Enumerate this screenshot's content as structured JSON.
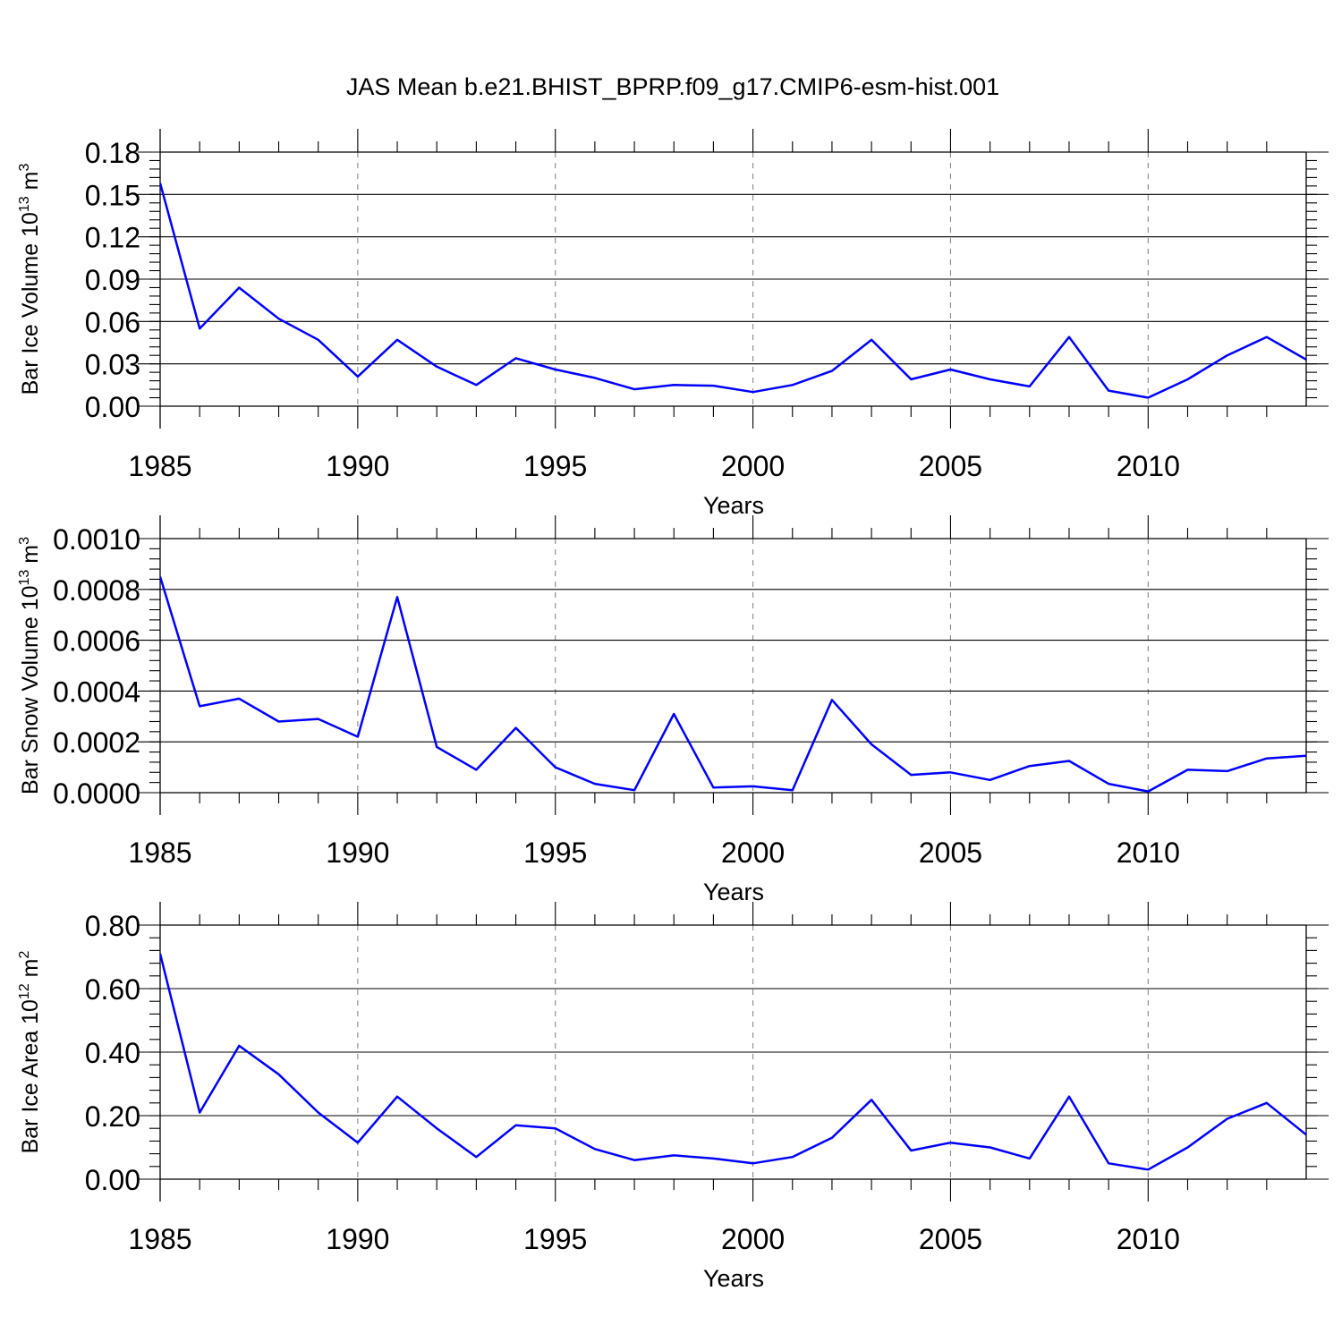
{
  "figure": {
    "title": "JAS Mean b.e21.BHIST_BPRP.f09_g17.CMIP6-esm-hist.001",
    "line_color": "#0000ff"
  },
  "chart_data": [
    {
      "type": "line",
      "title": "JAS Mean b.e21.BHIST_BPRP.f09_g17.CMIP6-esm-hist.001",
      "xlabel": "Years",
      "ylabel": {
        "text": "Bar Ice Volume 10",
        "exponent": "13",
        "unit": " m",
        "unit_exponent": "3"
      },
      "xlim": [
        1985,
        2014
      ],
      "ylim": [
        0,
        0.18
      ],
      "x_ticks": [
        1985,
        1990,
        1995,
        2000,
        2005,
        2010
      ],
      "y_ticks": [
        "0.00",
        "0.03",
        "0.06",
        "0.09",
        "0.12",
        "0.15",
        "0.18"
      ],
      "y_minor_step": 0.006,
      "grid_x": true,
      "x": [
        1985,
        1986,
        1987,
        1988,
        1989,
        1990,
        1991,
        1992,
        1993,
        1994,
        1995,
        1996,
        1997,
        1998,
        1999,
        2000,
        2001,
        2002,
        2003,
        2004,
        2005,
        2006,
        2007,
        2008,
        2009,
        2010,
        2011,
        2012,
        2013,
        2014
      ],
      "series": [
        {
          "name": "Bar Ice Volume",
          "values": [
            0.158,
            0.055,
            0.084,
            0.062,
            0.047,
            0.021,
            0.047,
            0.028,
            0.015,
            0.034,
            0.026,
            0.02,
            0.012,
            0.015,
            0.0145,
            0.01,
            0.015,
            0.025,
            0.047,
            0.019,
            0.026,
            0.019,
            0.014,
            0.049,
            0.011,
            0.006,
            0.019,
            0.036,
            0.049,
            0.033
          ]
        }
      ]
    },
    {
      "type": "line",
      "title": "",
      "xlabel": "Years",
      "ylabel": {
        "text": "Bar Snow Volume 10",
        "exponent": "13",
        "unit": " m",
        "unit_exponent": "3"
      },
      "xlim": [
        1985,
        2014
      ],
      "ylim": [
        0,
        0.001
      ],
      "x_ticks": [
        1985,
        1990,
        1995,
        2000,
        2005,
        2010
      ],
      "y_ticks": [
        "0.0000",
        "0.0002",
        "0.0004",
        "0.0006",
        "0.0008",
        "0.0010"
      ],
      "y_minor_step": 4e-05,
      "grid_x": true,
      "x": [
        1985,
        1986,
        1987,
        1988,
        1989,
        1990,
        1991,
        1992,
        1993,
        1994,
        1995,
        1996,
        1997,
        1998,
        1999,
        2000,
        2001,
        2002,
        2003,
        2004,
        2005,
        2006,
        2007,
        2008,
        2009,
        2010,
        2011,
        2012,
        2013,
        2014
      ],
      "series": [
        {
          "name": "Bar Snow Volume",
          "values": [
            0.00085,
            0.00034,
            0.00037,
            0.00028,
            0.00029,
            0.00022,
            0.00077,
            0.00018,
            9e-05,
            0.000255,
            0.0001,
            3.5e-05,
            1e-05,
            0.00031,
            2e-05,
            2.5e-05,
            1e-05,
            0.000365,
            0.00019,
            7e-05,
            8e-05,
            5e-05,
            0.000105,
            0.000125,
            3.5e-05,
            5e-06,
            9e-05,
            8.5e-05,
            0.000135,
            0.000145
          ]
        }
      ]
    },
    {
      "type": "line",
      "title": "",
      "xlabel": "Years",
      "ylabel": {
        "text": "Bar Ice Area 10",
        "exponent": "12",
        "unit": " m",
        "unit_exponent": "2"
      },
      "xlim": [
        1985,
        2014
      ],
      "ylim": [
        0,
        0.8
      ],
      "x_ticks": [
        1985,
        1990,
        1995,
        2000,
        2005,
        2010
      ],
      "y_ticks": [
        "0.00",
        "0.20",
        "0.40",
        "0.60",
        "0.80"
      ],
      "y_minor_step": 0.04,
      "grid_x": true,
      "x": [
        1985,
        1986,
        1987,
        1988,
        1989,
        1990,
        1991,
        1992,
        1993,
        1994,
        1995,
        1996,
        1997,
        1998,
        1999,
        2000,
        2001,
        2002,
        2003,
        2004,
        2005,
        2006,
        2007,
        2008,
        2009,
        2010,
        2011,
        2012,
        2013,
        2014
      ],
      "series": [
        {
          "name": "Bar Ice Area",
          "values": [
            0.71,
            0.21,
            0.42,
            0.33,
            0.21,
            0.115,
            0.26,
            0.16,
            0.07,
            0.17,
            0.16,
            0.095,
            0.06,
            0.075,
            0.065,
            0.05,
            0.07,
            0.13,
            0.25,
            0.09,
            0.115,
            0.1,
            0.065,
            0.26,
            0.05,
            0.03,
            0.1,
            0.19,
            0.24,
            0.14
          ]
        }
      ]
    }
  ]
}
